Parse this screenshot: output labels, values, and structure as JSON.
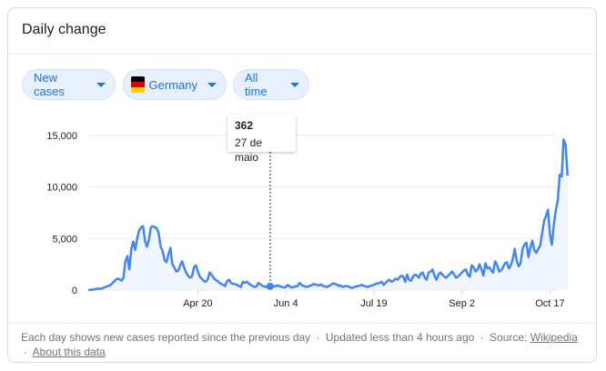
{
  "card": {
    "title": "Daily change"
  },
  "filters": {
    "metric_label": "New cases",
    "country_label": "Germany",
    "range_label": "All time"
  },
  "tooltip": {
    "value": "362",
    "date": "27 de maio"
  },
  "footer": {
    "description": "Each day shows new cases reported since the previous day",
    "updated": "Updated less than 4 hours ago",
    "source_label": "Source:",
    "source_link": "Wikipedia",
    "about_link": "About this data",
    "separator": "·"
  },
  "colors": {
    "line": "#4285f4",
    "fill": "#e8f0fe",
    "accent": "#1a73e8",
    "grid": "#ebebeb",
    "flag_black": "#000000",
    "flag_red": "#dd0000",
    "flag_gold": "#ffce00"
  },
  "chart_data": {
    "type": "line",
    "title": "Daily change",
    "xlabel": "",
    "ylabel": "",
    "ylim": [
      0,
      15000
    ],
    "yticks": [
      0,
      5000,
      10000,
      15000
    ],
    "ytick_labels": [
      "0",
      "5,000",
      "10,000",
      "15,000"
    ],
    "xticks": [
      "2020-04-20",
      "2020-06-04",
      "2020-07-19",
      "2020-09-02",
      "2020-10-17"
    ],
    "xtick_labels": [
      "Apr 20",
      "Jun 4",
      "Jul 19",
      "Sep 2",
      "Oct 17"
    ],
    "x_start": "2020-02-24",
    "x_end": "2020-10-21",
    "grid": true,
    "legend": "none",
    "highlight": {
      "x": "2020-05-27",
      "y": 362
    },
    "series": [
      {
        "values": [
          0,
          10,
          40,
          60,
          110,
          140,
          120,
          150,
          250,
          300,
          400,
          450,
          600,
          800,
          1000,
          1100,
          1050,
          900,
          1200,
          2800,
          3300,
          2000,
          4000,
          4700,
          3900,
          5000,
          5800,
          6100,
          6200,
          4800,
          4200,
          4900,
          6100,
          6200,
          6100,
          6000,
          5500,
          4200,
          3800,
          2900,
          2700,
          3500,
          4100,
          2500,
          2200,
          1800,
          1900,
          2400,
          2800,
          2200,
          1700,
          1400,
          1200,
          1300,
          2200,
          2400,
          1800,
          1300,
          1100,
          900,
          800,
          1000,
          1700,
          1500,
          1200,
          1000,
          900,
          700,
          600,
          500,
          400,
          900,
          1000,
          700,
          600,
          600,
          500,
          400,
          300,
          800,
          700,
          800,
          650,
          500,
          400,
          300,
          362,
          700,
          550,
          400,
          350,
          300,
          250,
          300,
          350,
          350,
          400,
          450,
          350,
          300,
          250,
          300,
          500,
          350,
          250,
          300,
          350,
          400,
          700,
          500,
          400,
          350,
          300,
          400,
          450,
          600,
          550,
          500,
          450,
          550,
          400,
          350,
          300,
          400,
          500,
          650,
          600,
          550,
          400,
          450,
          300,
          350,
          400,
          350,
          250,
          200,
          300,
          350,
          400,
          450,
          500,
          400,
          350,
          300,
          400,
          450,
          500,
          600,
          650,
          700,
          800,
          500,
          700,
          900,
          1000,
          800,
          900,
          1100,
          1000,
          1200,
          1400,
          1300,
          800,
          1500,
          1000,
          900,
          1300,
          1500,
          1400,
          1200,
          1600,
          1700,
          1200,
          1000,
          1700,
          1800,
          2000,
          1400,
          1000,
          1500,
          1700,
          1500,
          1300,
          1200,
          1400,
          1600,
          1800,
          1500,
          1200,
          1300,
          1500,
          1700,
          1900,
          2000,
          1500,
          1300,
          2400,
          2200,
          1800,
          2000,
          2500,
          2000,
          1400,
          2600,
          2100,
          2200,
          1900,
          1700,
          2800,
          2400,
          1800,
          1900,
          2200,
          2600,
          2700,
          2100,
          2400,
          3000,
          4000,
          2900,
          2300,
          2600,
          4000,
          4400,
          4600,
          3200,
          4100,
          4800,
          3900,
          3600,
          4000,
          4300,
          5500,
          6700,
          7200,
          7800,
          5400,
          4400,
          6400,
          7800,
          8700,
          11200,
          11000,
          14600,
          14100,
          11100
        ]
      }
    ]
  }
}
